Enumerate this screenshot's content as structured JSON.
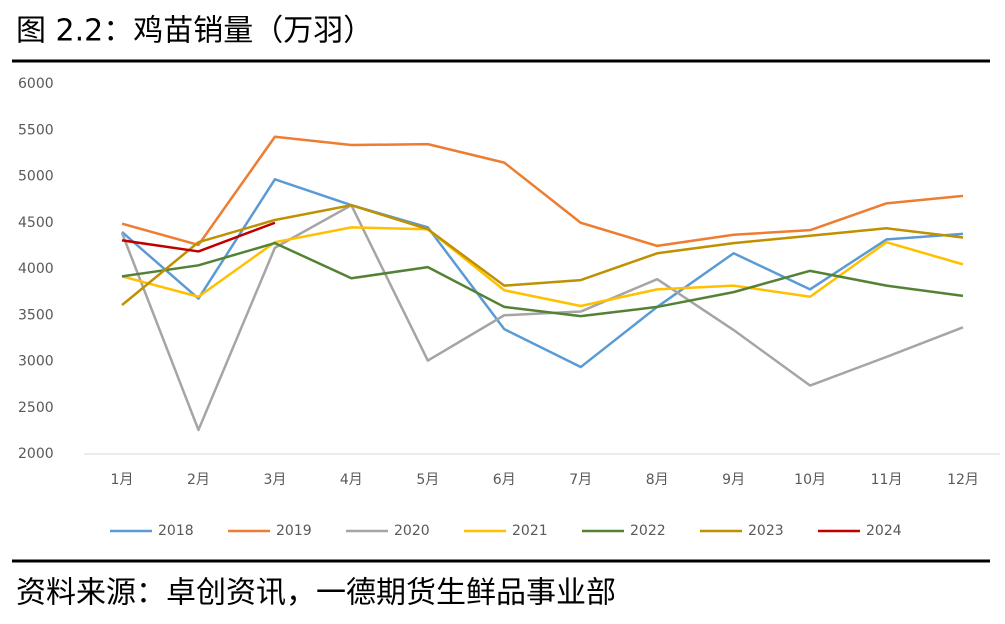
{
  "chart_data": {
    "type": "line",
    "title": "图 2.2：鸡苗销量（万羽）",
    "source": "资料来源：卓创资讯，一德期货生鲜品事业部",
    "categories": [
      "1月",
      "2月",
      "3月",
      "4月",
      "5月",
      "6月",
      "7月",
      "8月",
      "9月",
      "10月",
      "11月",
      "12月"
    ],
    "series": [
      {
        "name": "2018",
        "color": "#5b9bd5",
        "values": [
          4400,
          3680,
          4970,
          4690,
          4450,
          3350,
          2940,
          3590,
          4170,
          3780,
          4320,
          4380
        ]
      },
      {
        "name": "2019",
        "color": "#ed7d31",
        "values": [
          4490,
          4260,
          5430,
          5340,
          5350,
          5150,
          4500,
          4250,
          4370,
          4420,
          4710,
          4790
        ]
      },
      {
        "name": "2020",
        "color": "#a5a5a5",
        "values": [
          4390,
          2260,
          4230,
          4690,
          3010,
          3500,
          3540,
          3890,
          3340,
          2740,
          3050,
          3370
        ]
      },
      {
        "name": "2021",
        "color": "#ffc000",
        "values": [
          3920,
          3700,
          4290,
          4450,
          4430,
          3770,
          3600,
          3780,
          3820,
          3700,
          4290,
          4050
        ]
      },
      {
        "name": "2022",
        "color": "#548235",
        "values": [
          3920,
          4040,
          4280,
          3900,
          4020,
          3590,
          3490,
          3590,
          3750,
          3980,
          3820,
          3710
        ]
      },
      {
        "name": "2023",
        "color": "#bf9000",
        "values": [
          3610,
          4290,
          4530,
          4690,
          4430,
          3820,
          3880,
          4170,
          4280,
          4360,
          4440,
          4340
        ]
      },
      {
        "name": "2024",
        "color": "#c00000",
        "values": [
          4310,
          4190,
          4500,
          null,
          null,
          null,
          null,
          null,
          null,
          null,
          null,
          null
        ]
      }
    ],
    "ylim": [
      2000,
      6000
    ],
    "yticks": [
      2000,
      2500,
      3000,
      3500,
      4000,
      4500,
      5000,
      5500,
      6000
    ],
    "grid": false
  }
}
